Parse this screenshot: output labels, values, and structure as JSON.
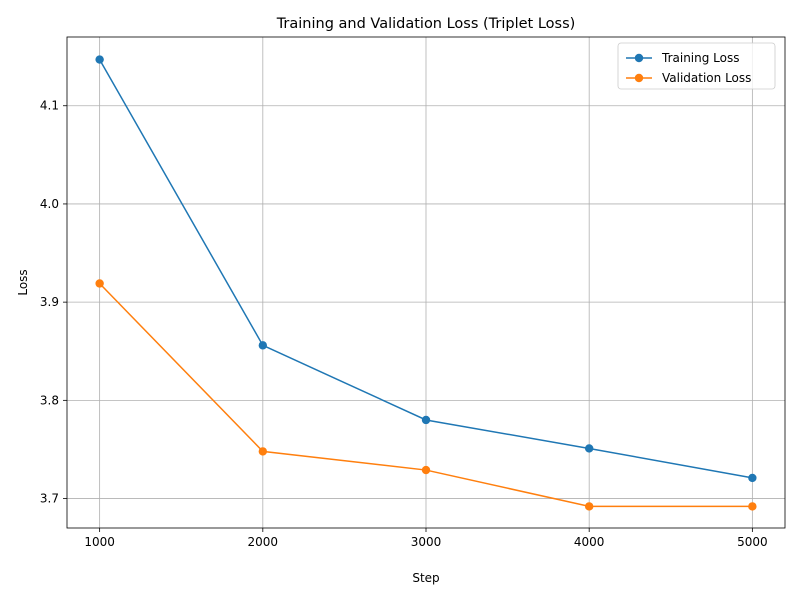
{
  "chart_data": {
    "type": "line",
    "title": "Training and Validation Loss (Triplet Loss)",
    "xlabel": "Step",
    "ylabel": "Loss",
    "x": [
      1000,
      2000,
      3000,
      4000,
      5000
    ],
    "xticks": [
      1000,
      2000,
      3000,
      4000,
      5000
    ],
    "yticks": [
      3.7,
      3.8,
      3.9,
      4.0,
      4.1
    ],
    "xlim": [
      800,
      5200
    ],
    "ylim": [
      3.67,
      4.17
    ],
    "grid": true,
    "legend_position": "top-right",
    "series": [
      {
        "name": "Training Loss",
        "color": "#1f77b4",
        "marker": "circle",
        "values": [
          4.147,
          3.856,
          3.78,
          3.751,
          3.721
        ]
      },
      {
        "name": "Validation Loss",
        "color": "#ff7f0e",
        "marker": "circle",
        "values": [
          3.919,
          3.748,
          3.729,
          3.692,
          3.692
        ]
      }
    ]
  }
}
